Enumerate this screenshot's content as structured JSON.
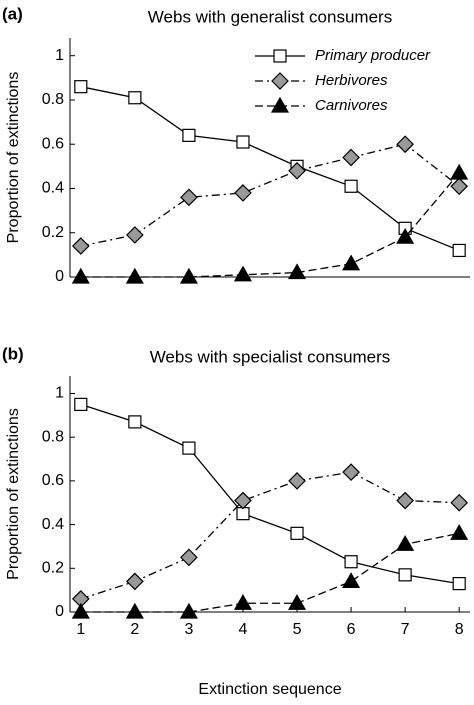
{
  "chart_data": [
    {
      "type": "line",
      "panel_label": "(a)",
      "title": "Webs with generalist consumers",
      "ylabel": "Proportion of extinctions",
      "x": [
        1,
        2,
        3,
        4,
        5,
        6,
        7,
        8
      ],
      "xlim": [
        0.8,
        8.2
      ],
      "ylim": [
        0,
        1.08
      ],
      "yticks": [
        0,
        0.2,
        0.4,
        0.6,
        0.8,
        1
      ],
      "legend": "upper right",
      "series": [
        {
          "name": "Primary producer",
          "color": "#ffffff",
          "marker": "square",
          "linestyle": "solid",
          "values": [
            0.86,
            0.81,
            0.64,
            0.61,
            0.5,
            0.41,
            0.22,
            0.12
          ]
        },
        {
          "name": "Herbivores",
          "color": "#999999",
          "marker": "diamond",
          "linestyle": "dashdot",
          "values": [
            0.14,
            0.19,
            0.36,
            0.38,
            0.48,
            0.54,
            0.6,
            0.41
          ]
        },
        {
          "name": "Carnivores",
          "color": "#000000",
          "marker": "triangle",
          "linestyle": "dashed",
          "values": [
            0,
            0,
            0,
            0.01,
            0.02,
            0.06,
            0.18,
            0.47
          ]
        }
      ]
    },
    {
      "type": "line",
      "panel_label": "(b)",
      "title": "Webs with specialist consumers",
      "ylabel": "Proportion of extinctions",
      "xlabel": "Extinction sequence",
      "x": [
        1,
        2,
        3,
        4,
        5,
        6,
        7,
        8
      ],
      "xlim": [
        0.8,
        8.2
      ],
      "xticks": [
        1,
        2,
        3,
        4,
        5,
        6,
        7,
        8
      ],
      "ylim": [
        0,
        1.08
      ],
      "yticks": [
        0,
        0.2,
        0.4,
        0.6,
        0.8,
        1
      ],
      "series": [
        {
          "color": "#ffffff",
          "marker": "square",
          "linestyle": "solid",
          "values": [
            0.95,
            0.87,
            0.75,
            0.45,
            0.36,
            0.23,
            0.17,
            0.13
          ]
        },
        {
          "color": "#999999",
          "marker": "diamond",
          "linestyle": "dashdot",
          "values": [
            0.06,
            0.14,
            0.25,
            0.51,
            0.6,
            0.64,
            0.51,
            0.5
          ]
        },
        {
          "color": "#000000",
          "marker": "triangle",
          "linestyle": "dashed",
          "values": [
            0,
            0,
            0,
            0.04,
            0.04,
            0.14,
            0.31,
            0.36
          ]
        }
      ]
    }
  ]
}
